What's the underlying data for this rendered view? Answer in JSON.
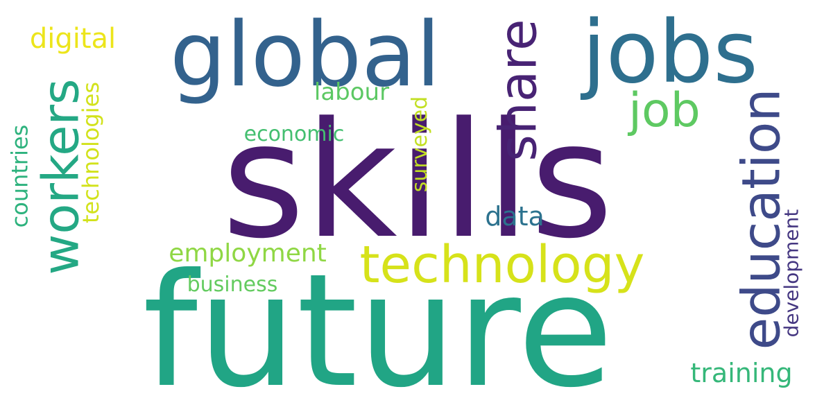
{
  "words": [
    {
      "text": "skills",
      "color": "#481c6e",
      "vertical": false
    },
    {
      "text": "future",
      "color": "#21a585",
      "vertical": false
    },
    {
      "text": "global",
      "color": "#33628d",
      "vertical": false
    },
    {
      "text": "jobs",
      "color": "#2e6f8e",
      "vertical": false
    },
    {
      "text": "technology",
      "color": "#d6e21a",
      "vertical": false
    },
    {
      "text": "workers",
      "color": "#24a884",
      "vertical": true
    },
    {
      "text": "share",
      "color": "#482374",
      "vertical": true
    },
    {
      "text": "education",
      "color": "#3e4a89",
      "vertical": true
    },
    {
      "text": "job",
      "color": "#5ec962",
      "vertical": false
    },
    {
      "text": "employment",
      "color": "#8fd744",
      "vertical": false
    },
    {
      "text": "digital",
      "color": "#ece51b",
      "vertical": false
    },
    {
      "text": "technologies",
      "color": "#d2e21b",
      "vertical": true
    },
    {
      "text": "countries",
      "color": "#2db27d",
      "vertical": true
    },
    {
      "text": "labour",
      "color": "#5cc863",
      "vertical": false
    },
    {
      "text": "economic",
      "color": "#44bf70",
      "vertical": false
    },
    {
      "text": "surveyed",
      "color": "#c2df23",
      "vertical": true
    },
    {
      "text": "data",
      "color": "#2c728e",
      "vertical": false
    },
    {
      "text": "business",
      "color": "#63cb5f",
      "vertical": false
    },
    {
      "text": "development",
      "color": "#453781",
      "vertical": true
    },
    {
      "text": "training",
      "color": "#35b779",
      "vertical": false
    }
  ]
}
